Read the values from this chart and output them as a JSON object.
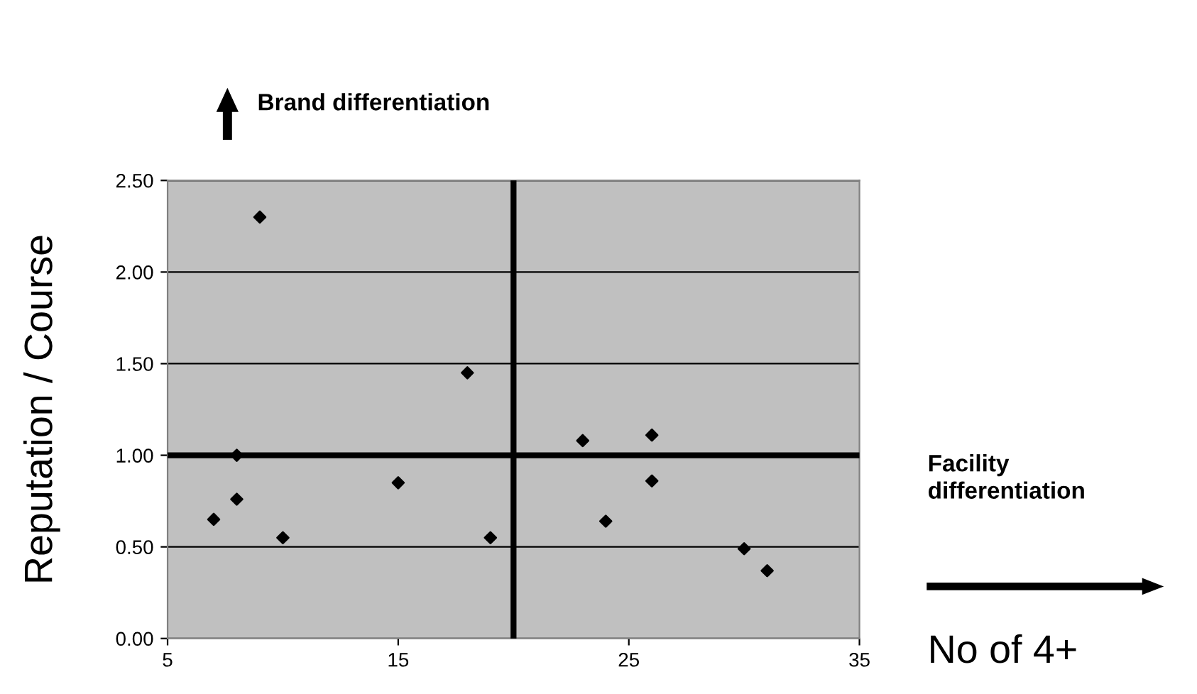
{
  "chart_data": {
    "type": "scatter",
    "xlabel": "No of 4+",
    "ylabel": "Reputation / Course",
    "annotations": [
      "Brand differentiation",
      "Facility differentiation"
    ],
    "x": [
      7,
      8,
      8,
      9,
      10,
      15,
      18,
      19,
      23,
      24,
      26,
      26,
      30,
      31
    ],
    "series": [
      {
        "color": "#000000",
        "values": [
          0.65,
          1.0,
          0.76,
          2.3,
          0.55,
          0.85,
          1.45,
          0.55,
          1.08,
          0.64,
          1.11,
          0.86,
          0.49,
          0.37
        ]
      }
    ],
    "xlim": [
      5,
      35
    ],
    "xticks": [
      5,
      15,
      25,
      35
    ],
    "ylim": [
      0,
      2.5
    ],
    "yticks": [
      {
        "value": 0,
        "label": "0.00"
      },
      {
        "value": 0.5,
        "label": "0.50"
      },
      {
        "value": 1,
        "label": "1.00"
      },
      {
        "value": 1.5,
        "label": "1.50"
      },
      {
        "value": 2,
        "label": "2.00"
      },
      {
        "value": 2.5,
        "label": "2.50"
      }
    ],
    "ref_lines": [
      {
        "axis": "x",
        "value": 20,
        "color": "#000000"
      },
      {
        "axis": "y",
        "value": 1,
        "color": "#000000"
      }
    ],
    "grid": "y",
    "marker": "diamond",
    "legend": false
  }
}
